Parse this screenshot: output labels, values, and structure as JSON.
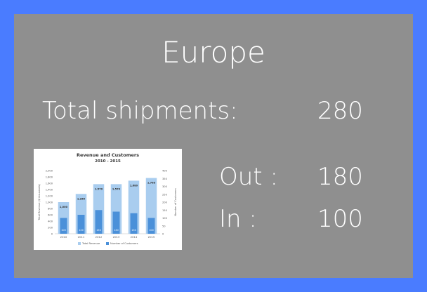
{
  "region": {
    "title": "Europe",
    "total_label": "Total shipments:",
    "total_value": "280",
    "out_label": "Out :",
    "out_value": "180",
    "in_label": "In :",
    "in_value": "100"
  },
  "colors": {
    "background": "#4a7cff",
    "panel": "#8f8f8f",
    "revenue_bar": "#a9cdef",
    "customers_bar": "#4a90d9"
  },
  "chart_data": {
    "type": "bar",
    "title": "Revenue and Customers",
    "subtitle": "2010 - 2015",
    "categories": [
      "2010",
      "2011",
      "2012",
      "2013",
      "2014",
      "2015"
    ],
    "series": [
      {
        "name": "Total Revenue",
        "axis": "left",
        "values": [
          1000,
          1260,
          1570,
          1570,
          1680,
          1765
        ],
        "labels": [
          "1,000",
          "1,260",
          "1,570",
          "1,570",
          "1,680",
          "1,765"
        ]
      },
      {
        "name": "Number of Customers",
        "axis": "right",
        "values": [
          100,
          120,
          150,
          140,
          130,
          100
        ],
        "labels": [
          "100",
          "120",
          "150",
          "140",
          "130",
          "100"
        ]
      }
    ],
    "ylabel": "Total Revenue ($ thousands)",
    "ylabel_right": "Number of Customers",
    "ylim": [
      0,
      2000
    ],
    "yticks": [
      "0",
      "200",
      "400",
      "600",
      "800",
      "1,000",
      "1,200",
      "1,400",
      "1,600",
      "1,800",
      "2,000"
    ],
    "ylim_right": [
      0,
      400
    ],
    "yticks_right": [
      "0",
      "50",
      "100",
      "150",
      "200",
      "250",
      "300",
      "350",
      "400"
    ],
    "legend": "bottom"
  }
}
